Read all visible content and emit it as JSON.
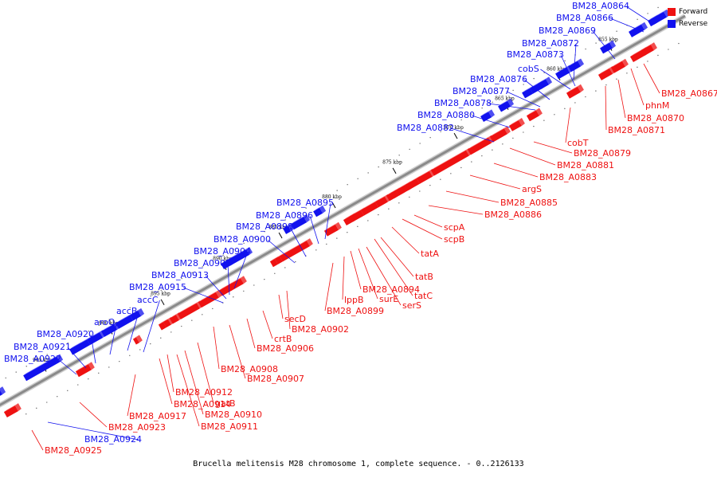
{
  "caption": "Brucella melitensis M28 chromosome 1, complete sequence. - 0..2126133",
  "legend": {
    "forward": {
      "label": "Forward",
      "color": "#ee1111"
    },
    "reverse": {
      "label": "Reverse",
      "color": "#1111ee"
    }
  },
  "colors": {
    "forward": "#ee1111",
    "forward_top": "#ff8c8c",
    "reverse": "#1111ee",
    "reverse_top": "#8a8aff",
    "backbone": "#8a8a8a"
  },
  "scale": {
    "unit": "kbp",
    "ticks": [
      "855 kbp",
      "860 kbp",
      "865 kbp",
      "870 kbp",
      "875 kbp",
      "880 kbp",
      "885 kbp",
      "890 kbp",
      "895 kbp",
      "900 kbp",
      "905 kbp"
    ]
  },
  "forward_labels": [
    "BM28_A0867",
    "phnM",
    "BM28_A0870",
    "BM28_A0871",
    "cobT",
    "BM28_A0879",
    "BM28_A0881",
    "BM28_A0883",
    "argS",
    "BM28_A0885",
    "BM28_A0886",
    "scpA",
    "scpB",
    "tatA",
    "tatB",
    "tatC",
    "serS",
    "surE",
    "BM28_A0894",
    "BM28_A0899",
    "lppB",
    "BM28_A0902",
    "secD",
    "crtB",
    "BM28_A0906",
    "BM28_A0907",
    "BM28_A0908",
    "BM28_A0910",
    "BM28_A0911",
    "gatB",
    "BM28_A0912",
    "BM28_A0914",
    "BM28_A0917",
    "BM28_A0923",
    "BM28_A0925"
  ],
  "reverse_labels": [
    "BM28_A0864",
    "BM28_A0866",
    "BM28_A0869",
    "BM28_A0872",
    "BM28_A0873",
    "cobS",
    "BM28_A0876",
    "BM28_A0877",
    "BM28_A0878",
    "BM28_A0880",
    "BM28_A0882",
    "BM28_A0895",
    "BM28_A0896",
    "BM28_A0898",
    "BM28_A0900",
    "BM28_A0904",
    "BM28_A0905",
    "BM28_A0913",
    "BM28_A0915",
    "accC",
    "accB",
    "aroQ",
    "BM28_A0920",
    "BM28_A0921",
    "BM28_A0922",
    "BM28_A0924"
  ]
}
